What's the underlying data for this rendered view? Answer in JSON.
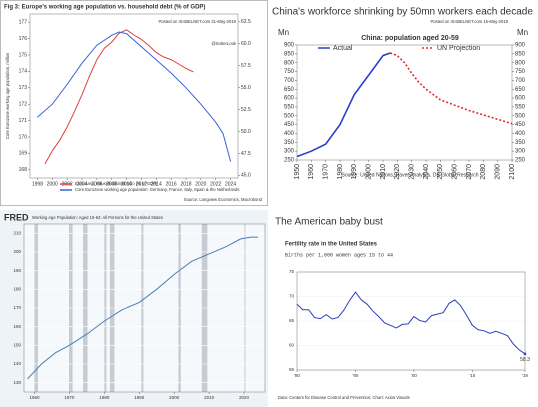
{
  "chart_data": [
    {
      "type": "line",
      "title": "Fig 3: Europe's working age population vs. household debt (% of GDP)",
      "annotations": [
        "Posted on ISABELNET.com 21-May-2019",
        "@SoberLook"
      ],
      "source": "Source: Longview Economics, Macrobond",
      "ylabel": "Core Eurozone working age population, million",
      "xlim": [
        1997,
        2025
      ],
      "xticks": [
        1998,
        2000,
        2002,
        2004,
        2006,
        2008,
        2010,
        2012,
        2014,
        2016,
        2018,
        2020,
        2022,
        2024
      ],
      "ylim": [
        167.5,
        177.5
      ],
      "yticks": [
        168,
        169,
        170,
        171,
        172,
        173,
        174,
        175,
        176,
        177
      ],
      "y2lim": [
        44.7,
        63.4
      ],
      "y2ticks": [
        {
          "value": 45,
          "label": "45.0"
        },
        47.5,
        {
          "value": 50,
          "label": "50.0"
        },
        52.5,
        {
          "value": 55,
          "label": "55.0"
        },
        57.5,
        {
          "value": 60,
          "label": "60.0"
        },
        62.5
      ],
      "series": [
        {
          "name": "Euro Area, Household debt ratio (% of GDP)",
          "color": "#e0403a",
          "axis": "y2",
          "x": [
            1999,
            2000,
            2001,
            2002,
            2003,
            2004,
            2005,
            2006,
            2007,
            2008,
            2009,
            2010,
            2011,
            2012,
            2013,
            2014,
            2015,
            2016,
            2017,
            2018,
            2019
          ],
          "values": [
            46.3,
            47.8,
            49.0,
            50.5,
            52.3,
            54.2,
            56.3,
            58.2,
            59.5,
            60.2,
            61.2,
            61.6,
            61.0,
            60.5,
            59.8,
            59.0,
            58.5,
            58.2,
            57.7,
            57.2,
            56.8
          ]
        },
        {
          "name": "Core Eurozone working age population: Germany, France, Italy, Spain & the Netherlands",
          "color": "#3b62d6",
          "x": [
            1998,
            2000,
            2002,
            2004,
            2006,
            2008,
            2009,
            2010,
            2012,
            2014,
            2016,
            2018,
            2020,
            2022,
            2023,
            2024
          ],
          "values": [
            171.2,
            172.0,
            173.2,
            174.5,
            175.6,
            176.2,
            176.4,
            176.3,
            175.5,
            174.7,
            173.9,
            173.0,
            172.0,
            170.9,
            170.2,
            168.5
          ]
        }
      ]
    },
    {
      "type": "line",
      "title": "China's workforce shrinking by 50mn workers each decade",
      "subtitle": "China: population aged 20-59",
      "ylabel": "Mn",
      "y2label": "Mn",
      "annotations": [
        "Posted on ISABELNET.com 15-May-2019"
      ],
      "source": "Source: United Nations, Haver Analytics, DB Global Research",
      "xlim": [
        1950,
        2100
      ],
      "xticks": [
        1950,
        1960,
        1970,
        1980,
        1990,
        2000,
        2010,
        2020,
        2030,
        2040,
        2050,
        2060,
        2070,
        2080,
        2090,
        2100
      ],
      "ylim": [
        250,
        900
      ],
      "yticks": [
        250,
        300,
        350,
        400,
        450,
        500,
        550,
        600,
        650,
        700,
        750,
        800,
        850,
        900
      ],
      "y2lim": [
        250,
        900
      ],
      "y2ticks": [
        250,
        300,
        350,
        400,
        450,
        500,
        550,
        600,
        650,
        700,
        750,
        800,
        850,
        900
      ],
      "series": [
        {
          "name": "Actual",
          "color": "#2a3fc8",
          "x": [
            1950,
            1960,
            1970,
            1980,
            1990,
            2000,
            2010,
            2015
          ],
          "values": [
            270,
            300,
            340,
            450,
            620,
            730,
            840,
            855
          ]
        },
        {
          "name": "UN Projection",
          "color": "#e02a2a",
          "dashed": true,
          "x": [
            2015,
            2020,
            2025,
            2030,
            2035,
            2040,
            2050,
            2060,
            2070,
            2080,
            2090,
            2100
          ],
          "values": [
            855,
            840,
            800,
            740,
            690,
            650,
            590,
            560,
            530,
            505,
            480,
            455
          ]
        }
      ]
    },
    {
      "type": "line",
      "title": "Working Age Population: Aged 15-64: All Persons for the United States",
      "logo": "FRED",
      "grid": true,
      "xlim": [
        1957,
        2026
      ],
      "xticks": [
        1960,
        1970,
        1980,
        1990,
        2000,
        2010,
        2020
      ],
      "ylim": [
        125,
        215
      ],
      "yticks": [
        130,
        140,
        150,
        160,
        170,
        180,
        190,
        200,
        210
      ],
      "recessions": [
        [
          1960,
          1961
        ],
        [
          1969.9,
          1970.9
        ],
        [
          1973.9,
          1975.2
        ],
        [
          1980,
          1980.6
        ],
        [
          1981.6,
          1982.9
        ],
        [
          1990.6,
          1991.2
        ],
        [
          2001.2,
          2001.9
        ],
        [
          2007.9,
          2009.5
        ],
        [
          2020.1,
          2020.4
        ]
      ],
      "x": [
        1958,
        1962,
        1966,
        1970,
        1975,
        1980,
        1985,
        1990,
        1995,
        2000,
        2005,
        2010,
        2015,
        2019,
        2022,
        2024
      ],
      "series": [
        {
          "name": "Working Age Population",
          "color": "#4a7fb5",
          "values": [
            132,
            140,
            146,
            150,
            156,
            163,
            169,
            173,
            180,
            188,
            195,
            199,
            203,
            207,
            208,
            208
          ]
        }
      ]
    },
    {
      "type": "line",
      "heading": "The American baby bust",
      "title": "Fertility rate in the United States",
      "subtitle": "Births per 1,000 women ages 15 to 44",
      "source": "Data: Centers for Disease Control and Prevention; Chart: Axios Visuals",
      "grid": true,
      "xlim": [
        1980,
        2019
      ],
      "xticks": [
        {
          "value": 1980,
          "label": "'80"
        },
        {
          "value": 1990,
          "label": "'90"
        },
        {
          "value": 2000,
          "label": "'00"
        },
        {
          "value": 2010,
          "label": "'10"
        },
        {
          "value": 2019,
          "label": "'19"
        }
      ],
      "ylim": [
        55,
        75
      ],
      "yticks": [
        55,
        60,
        65,
        70,
        75
      ],
      "x": [
        1980,
        1981,
        1982,
        1983,
        1984,
        1985,
        1986,
        1987,
        1988,
        1989,
        1990,
        1991,
        1992,
        1993,
        1994,
        1995,
        1996,
        1997,
        1998,
        1999,
        2000,
        2001,
        2002,
        2003,
        2004,
        2005,
        2006,
        2007,
        2008,
        2009,
        2010,
        2011,
        2012,
        2013,
        2014,
        2015,
        2016,
        2017,
        2018,
        2019
      ],
      "series": [
        {
          "name": "Fertility rate",
          "color": "#2b3fb8",
          "values": [
            68.4,
            67.3,
            67.3,
            65.7,
            65.5,
            66.3,
            65.4,
            65.7,
            67.2,
            69.2,
            70.9,
            69.3,
            68.4,
            67.0,
            65.9,
            64.6,
            64.1,
            63.6,
            64.3,
            64.4,
            65.9,
            65.1,
            64.8,
            66.1,
            66.4,
            66.7,
            68.6,
            69.3,
            68.1,
            66.2,
            64.1,
            63.2,
            63.0,
            62.5,
            62.9,
            62.5,
            62.0,
            60.3,
            59.1,
            58.3
          ],
          "value_labels": [
            null,
            null,
            null,
            null,
            null,
            null,
            null,
            null,
            null,
            null,
            null,
            null,
            null,
            null,
            null,
            null,
            null,
            null,
            null,
            null,
            null,
            null,
            null,
            null,
            null,
            null,
            null,
            null,
            null,
            null,
            null,
            null,
            null,
            null,
            null,
            null,
            null,
            null,
            null,
            "58.3"
          ]
        }
      ]
    }
  ]
}
